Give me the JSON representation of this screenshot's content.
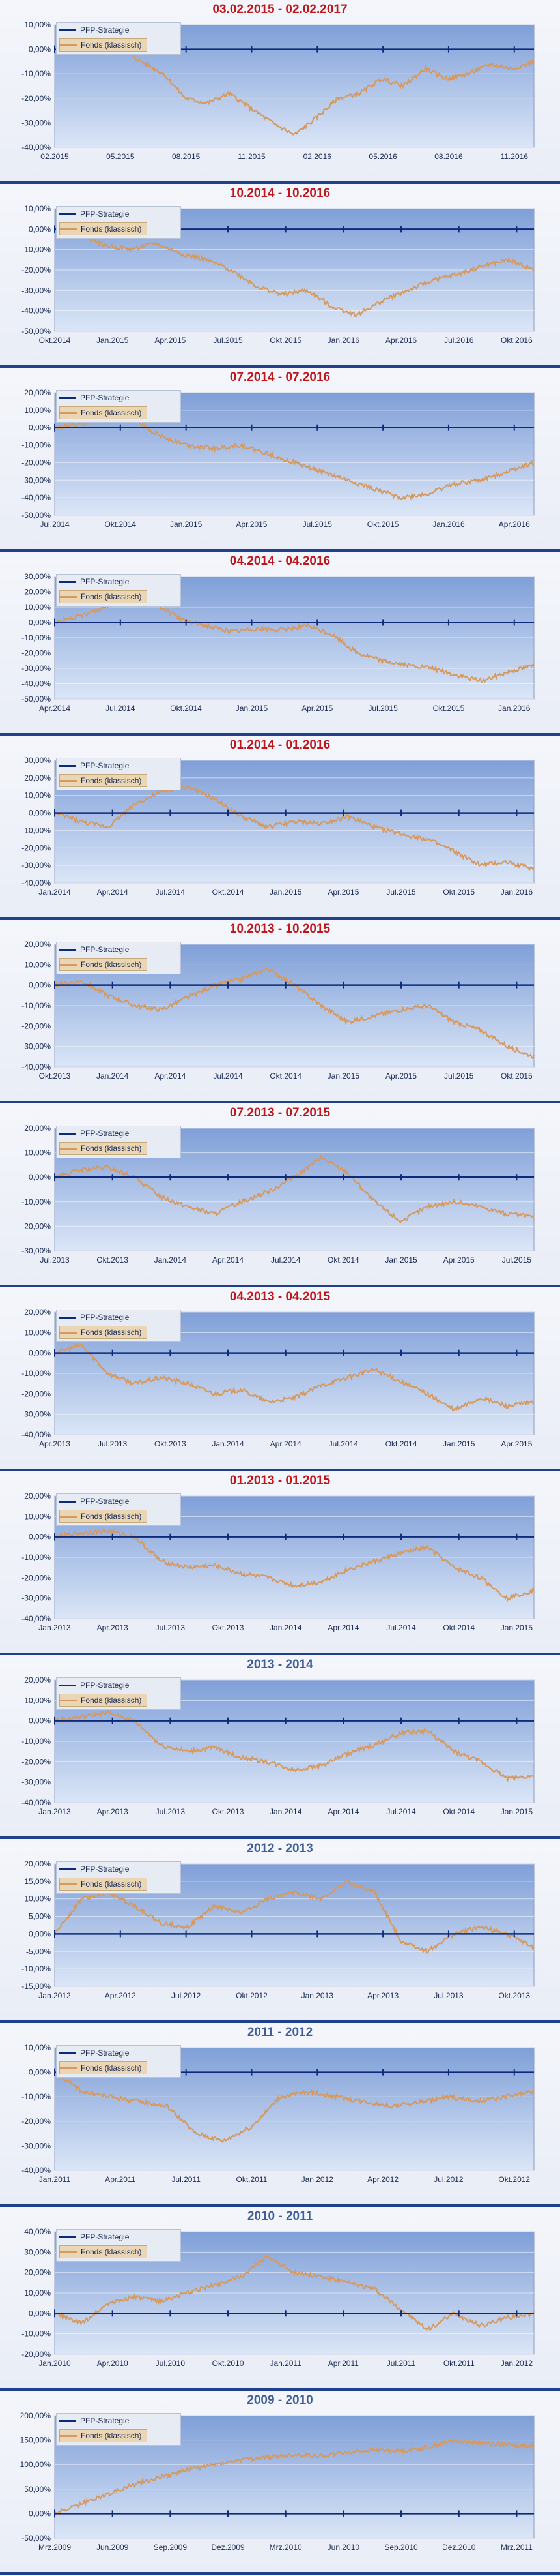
{
  "legend": {
    "series1": "PFP-Strategie",
    "series2": "Fonds (klassisch)"
  },
  "colors": {
    "series1": "#0d2b7a",
    "series2": "#d6995f",
    "title_red": "#c0151b",
    "title_blue": "#3d5e9a",
    "plot_top": "#7f9fd8",
    "plot_bottom": "#dbe6f7"
  },
  "chart_data": [
    {
      "type": "line",
      "title": "03.02.2015 - 02.02.2017",
      "title_color": "red",
      "y_ticks": [
        "10,00%",
        "0,00%",
        "-10,00%",
        "-20,00%",
        "-30,00%",
        "-40,00%"
      ],
      "x_ticks": [
        "02.2015",
        "05.2015",
        "08.2015",
        "11.2015",
        "02.2016",
        "05.2016",
        "08.2016",
        "11.2016"
      ],
      "ylim": [
        -40,
        10
      ],
      "series": [
        {
          "name": "PFP-Strategie",
          "values": [
            0,
            0
          ]
        },
        {
          "name": "Fonds (klassisch)",
          "values": [
            0,
            1,
            -2,
            0,
            -5,
            -10,
            -20,
            -22,
            -18,
            -24,
            -30,
            -35,
            -28,
            -20,
            -18,
            -12,
            -15,
            -8,
            -12,
            -10,
            -6,
            -8,
            -5
          ]
        }
      ]
    },
    {
      "type": "line",
      "title": "10.2014 - 10.2016",
      "title_color": "red",
      "y_ticks": [
        "10,00%",
        "0,00%",
        "-10,00%",
        "-20,00%",
        "-30,00%",
        "-40,00%",
        "-50,00%"
      ],
      "x_ticks": [
        "Okt.2014",
        "Jan.2015",
        "Apr.2015",
        "Jul.2015",
        "Okt.2015",
        "Jan.2016",
        "Apr.2016",
        "Jul.2016",
        "Okt.2016"
      ],
      "ylim": [
        -50,
        10
      ],
      "series": [
        {
          "name": "PFP-Strategie",
          "values": [
            0,
            0
          ]
        },
        {
          "name": "Fonds (klassisch)",
          "values": [
            0,
            -2,
            -8,
            -10,
            -7,
            -12,
            -15,
            -20,
            -28,
            -32,
            -30,
            -38,
            -42,
            -35,
            -30,
            -25,
            -22,
            -18,
            -15,
            -20
          ]
        }
      ]
    },
    {
      "type": "line",
      "title": "07.2014 - 07.2016",
      "title_color": "red",
      "y_ticks": [
        "20,00%",
        "10,00%",
        "0,00%",
        "-10,00%",
        "-20,00%",
        "-30,00%",
        "-40,00%",
        "-50,00%"
      ],
      "x_ticks": [
        "Jul.2014",
        "Okt.2014",
        "Jan.2015",
        "Apr.2015",
        "Jul.2015",
        "Okt.2015",
        "Jan.2016",
        "Apr.2016"
      ],
      "ylim": [
        -50,
        20
      ],
      "series": [
        {
          "name": "PFP-Strategie",
          "values": [
            0,
            0
          ]
        },
        {
          "name": "Fonds (klassisch)",
          "values": [
            0,
            2,
            8,
            4,
            -5,
            -10,
            -12,
            -10,
            -15,
            -20,
            -25,
            -30,
            -35,
            -40,
            -38,
            -32,
            -30,
            -25,
            -20
          ]
        }
      ]
    },
    {
      "type": "line",
      "title": "04.2014 - 04.2016",
      "title_color": "red",
      "y_ticks": [
        "30,00%",
        "20,00%",
        "10,00%",
        "0,00%",
        "-10,00%",
        "-20,00%",
        "-30,00%",
        "-40,00%",
        "-50,00%"
      ],
      "x_ticks": [
        "Apr.2014",
        "Jul.2014",
        "Okt.2014",
        "Jan.2015",
        "Apr.2015",
        "Jul.2015",
        "Okt.2015",
        "Jan.2016"
      ],
      "ylim": [
        -50,
        30
      ],
      "series": [
        {
          "name": "PFP-Strategie",
          "values": [
            0,
            0
          ]
        },
        {
          "name": "Fonds (klassisch)",
          "values": [
            0,
            4,
            10,
            16,
            12,
            2,
            -2,
            -6,
            -4,
            -5,
            -2,
            -8,
            -20,
            -25,
            -28,
            -30,
            -35,
            -38,
            -32,
            -28
          ]
        }
      ]
    },
    {
      "type": "line",
      "title": "01.2014 - 01.2016",
      "title_color": "red",
      "y_ticks": [
        "30,00%",
        "20,00%",
        "10,00%",
        "0,00%",
        "-10,00%",
        "-20,00%",
        "-30,00%",
        "-40,00%"
      ],
      "x_ticks": [
        "Jan.2014",
        "Apr.2014",
        "Jul.2014",
        "Okt.2014",
        "Jan.2015",
        "Apr.2015",
        "Jul.2015",
        "Okt.2015",
        "Jan.2016"
      ],
      "ylim": [
        -40,
        30
      ],
      "series": [
        {
          "name": "PFP-Strategie",
          "values": [
            0,
            0
          ]
        },
        {
          "name": "Fonds (klassisch)",
          "values": [
            0,
            -5,
            -8,
            5,
            12,
            15,
            8,
            -2,
            -8,
            -5,
            -6,
            -2,
            -8,
            -12,
            -15,
            -22,
            -30,
            -28,
            -32
          ]
        }
      ]
    },
    {
      "type": "line",
      "title": "10.2013 - 10.2015",
      "title_color": "red",
      "y_ticks": [
        "20,00%",
        "10,00%",
        "0,00%",
        "-10,00%",
        "-20,00%",
        "-30,00%",
        "-40,00%"
      ],
      "x_ticks": [
        "Okt.2013",
        "Jan.2014",
        "Apr.2014",
        "Jul.2014",
        "Okt.2014",
        "Jan.2015",
        "Apr.2015",
        "Jul.2015",
        "Okt.2015"
      ],
      "ylim": [
        -40,
        20
      ],
      "series": [
        {
          "name": "PFP-Strategie",
          "values": [
            0,
            0
          ]
        },
        {
          "name": "Fonds (klassisch)",
          "values": [
            0,
            2,
            -5,
            -10,
            -12,
            -6,
            0,
            3,
            8,
            0,
            -10,
            -18,
            -15,
            -12,
            -10,
            -18,
            -22,
            -30,
            -35
          ]
        }
      ]
    },
    {
      "type": "line",
      "title": "07.2013 - 07.2015",
      "title_color": "red",
      "y_ticks": [
        "20,00%",
        "10,00%",
        "0,00%",
        "-10,00%",
        "-20,00%",
        "-30,00%"
      ],
      "x_ticks": [
        "Jul.2013",
        "Okt.2013",
        "Jan.2014",
        "Apr.2014",
        "Jul.2014",
        "Okt.2014",
        "Jan.2015",
        "Apr.2015",
        "Jul.2015"
      ],
      "ylim": [
        -30,
        20
      ],
      "series": [
        {
          "name": "PFP-Strategie",
          "values": [
            0,
            0
          ]
        },
        {
          "name": "Fonds (klassisch)",
          "values": [
            0,
            3,
            4,
            0,
            -8,
            -12,
            -15,
            -10,
            -6,
            0,
            8,
            2,
            -10,
            -18,
            -12,
            -10,
            -12,
            -15,
            -16
          ]
        }
      ]
    },
    {
      "type": "line",
      "title": "04.2013 - 04.2015",
      "title_color": "red",
      "y_ticks": [
        "20,00%",
        "10,00%",
        "0,00%",
        "-10,00%",
        "-20,00%",
        "-30,00%",
        "-40,00%"
      ],
      "x_ticks": [
        "Apr.2013",
        "Jul.2013",
        "Okt.2013",
        "Jan.2014",
        "Apr.2014",
        "Jul.2014",
        "Okt.2014",
        "Jan.2015",
        "Apr.2015"
      ],
      "ylim": [
        -40,
        20
      ],
      "series": [
        {
          "name": "PFP-Strategie",
          "values": [
            0,
            0
          ]
        },
        {
          "name": "Fonds (klassisch)",
          "values": [
            0,
            4,
            -10,
            -15,
            -12,
            -15,
            -20,
            -18,
            -24,
            -22,
            -16,
            -12,
            -8,
            -14,
            -20,
            -28,
            -22,
            -26,
            -24
          ]
        }
      ]
    },
    {
      "type": "line",
      "title": "01.2013 - 01.2015",
      "title_color": "red",
      "y_ticks": [
        "20,00%",
        "10,00%",
        "0,00%",
        "-10,00%",
        "-20,00%",
        "-30,00%",
        "-40,00%"
      ],
      "x_ticks": [
        "Jan.2013",
        "Apr.2013",
        "Jul.2013",
        "Okt.2013",
        "Jan.2014",
        "Apr.2014",
        "Jul.2014",
        "Okt.2014",
        "Jan.2015"
      ],
      "ylim": [
        -40,
        20
      ],
      "series": [
        {
          "name": "PFP-Strategie",
          "values": [
            0,
            0
          ]
        },
        {
          "name": "Fonds (klassisch)",
          "values": [
            0,
            2,
            3,
            0,
            -12,
            -15,
            -14,
            -18,
            -20,
            -24,
            -22,
            -16,
            -12,
            -8,
            -5,
            -15,
            -20,
            -30,
            -26
          ]
        }
      ]
    },
    {
      "type": "line",
      "title": "2013 - 2014",
      "title_color": "blue",
      "y_ticks": [
        "20,00%",
        "10,00%",
        "0,00%",
        "-10,00%",
        "-20,00%",
        "-30,00%",
        "-40,00%"
      ],
      "x_ticks": [
        "Jan.2013",
        "Apr.2013",
        "Jul.2013",
        "Okt.2013",
        "Jan.2014",
        "Apr.2014",
        "Jul.2014",
        "Okt.2014",
        "Jan.2015"
      ],
      "ylim": [
        -40,
        20
      ],
      "series": [
        {
          "name": "PFP-Strategie",
          "values": [
            0,
            0
          ]
        },
        {
          "name": "Fonds (klassisch)",
          "values": [
            0,
            2,
            4,
            0,
            -12,
            -15,
            -13,
            -18,
            -20,
            -24,
            -22,
            -16,
            -12,
            -6,
            -5,
            -15,
            -20,
            -28,
            -27
          ]
        }
      ]
    },
    {
      "type": "line",
      "title": "2012 - 2013",
      "title_color": "blue",
      "y_ticks": [
        "20,00%",
        "15,00%",
        "10,00%",
        "5,00%",
        "0,00%",
        "-5,00%",
        "-10,00%",
        "-15,00%"
      ],
      "x_ticks": [
        "Jan.2012",
        "Apr.2012",
        "Jul.2012",
        "Okt.2012",
        "Jan.2013",
        "Apr.2013",
        "Jul.2013",
        "Okt.2013"
      ],
      "ylim": [
        -15,
        20
      ],
      "series": [
        {
          "name": "PFP-Strategie",
          "values": [
            0,
            0
          ]
        },
        {
          "name": "Fonds (klassisch)",
          "values": [
            0,
            10,
            12,
            8,
            3,
            2,
            8,
            6,
            10,
            12,
            10,
            15,
            12,
            -2,
            -5,
            0,
            2,
            0,
            -4
          ]
        }
      ]
    },
    {
      "type": "line",
      "title": "2011 - 2012",
      "title_color": "blue",
      "y_ticks": [
        "10,00%",
        "0,00%",
        "-10,00%",
        "-20,00%",
        "-30,00%",
        "-40,00%"
      ],
      "x_ticks": [
        "Jan.2011",
        "Apr.2011",
        "Jul.2011",
        "Okt.2011",
        "Jan.2012",
        "Apr.2012",
        "Jul.2012",
        "Okt.2012"
      ],
      "ylim": [
        -40,
        10
      ],
      "series": [
        {
          "name": "PFP-Strategie",
          "values": [
            0,
            0
          ]
        },
        {
          "name": "Fonds (klassisch)",
          "values": [
            0,
            -8,
            -10,
            -12,
            -14,
            -25,
            -28,
            -22,
            -10,
            -8,
            -10,
            -12,
            -14,
            -12,
            -10,
            -12,
            -10,
            -8
          ]
        }
      ]
    },
    {
      "type": "line",
      "title": "2010 - 2011",
      "title_color": "blue",
      "y_ticks": [
        "40,00%",
        "30,00%",
        "20,00%",
        "10,00%",
        "0,00%",
        "-10,00%",
        "-20,00%"
      ],
      "x_ticks": [
        "Jan.2010",
        "Apr.2010",
        "Jul.2010",
        "Okt.2010",
        "Jan.2011",
        "Apr.2011",
        "Jul.2011",
        "Okt.2011",
        "Jan.2012"
      ],
      "ylim": [
        -20,
        40
      ],
      "series": [
        {
          "name": "PFP-Strategie",
          "values": [
            0,
            0
          ]
        },
        {
          "name": "Fonds (klassisch)",
          "values": [
            0,
            -5,
            5,
            8,
            6,
            10,
            14,
            18,
            28,
            20,
            18,
            15,
            12,
            2,
            -8,
            0,
            -6,
            -2,
            0
          ]
        }
      ]
    },
    {
      "type": "line",
      "title": "2009 - 2010",
      "title_color": "blue",
      "y_ticks": [
        "200,00%",
        "150,00%",
        "100,00%",
        "50,00%",
        "0,00%",
        "-50,00%"
      ],
      "x_ticks": [
        "Mrz.2009",
        "Jun.2009",
        "Sep.2009",
        "Dez.2009",
        "Mrz.2010",
        "Jun.2010",
        "Sep.2010",
        "Dez.2010",
        "Mrz.2011"
      ],
      "ylim": [
        -50,
        200
      ],
      "series": [
        {
          "name": "PFP-Strategie",
          "values": [
            0,
            0
          ]
        },
        {
          "name": "Fonds (klassisch)",
          "values": [
            0,
            20,
            40,
            60,
            75,
            90,
            100,
            110,
            115,
            120,
            118,
            125,
            130,
            128,
            135,
            150,
            145,
            140,
            138
          ]
        }
      ]
    }
  ]
}
